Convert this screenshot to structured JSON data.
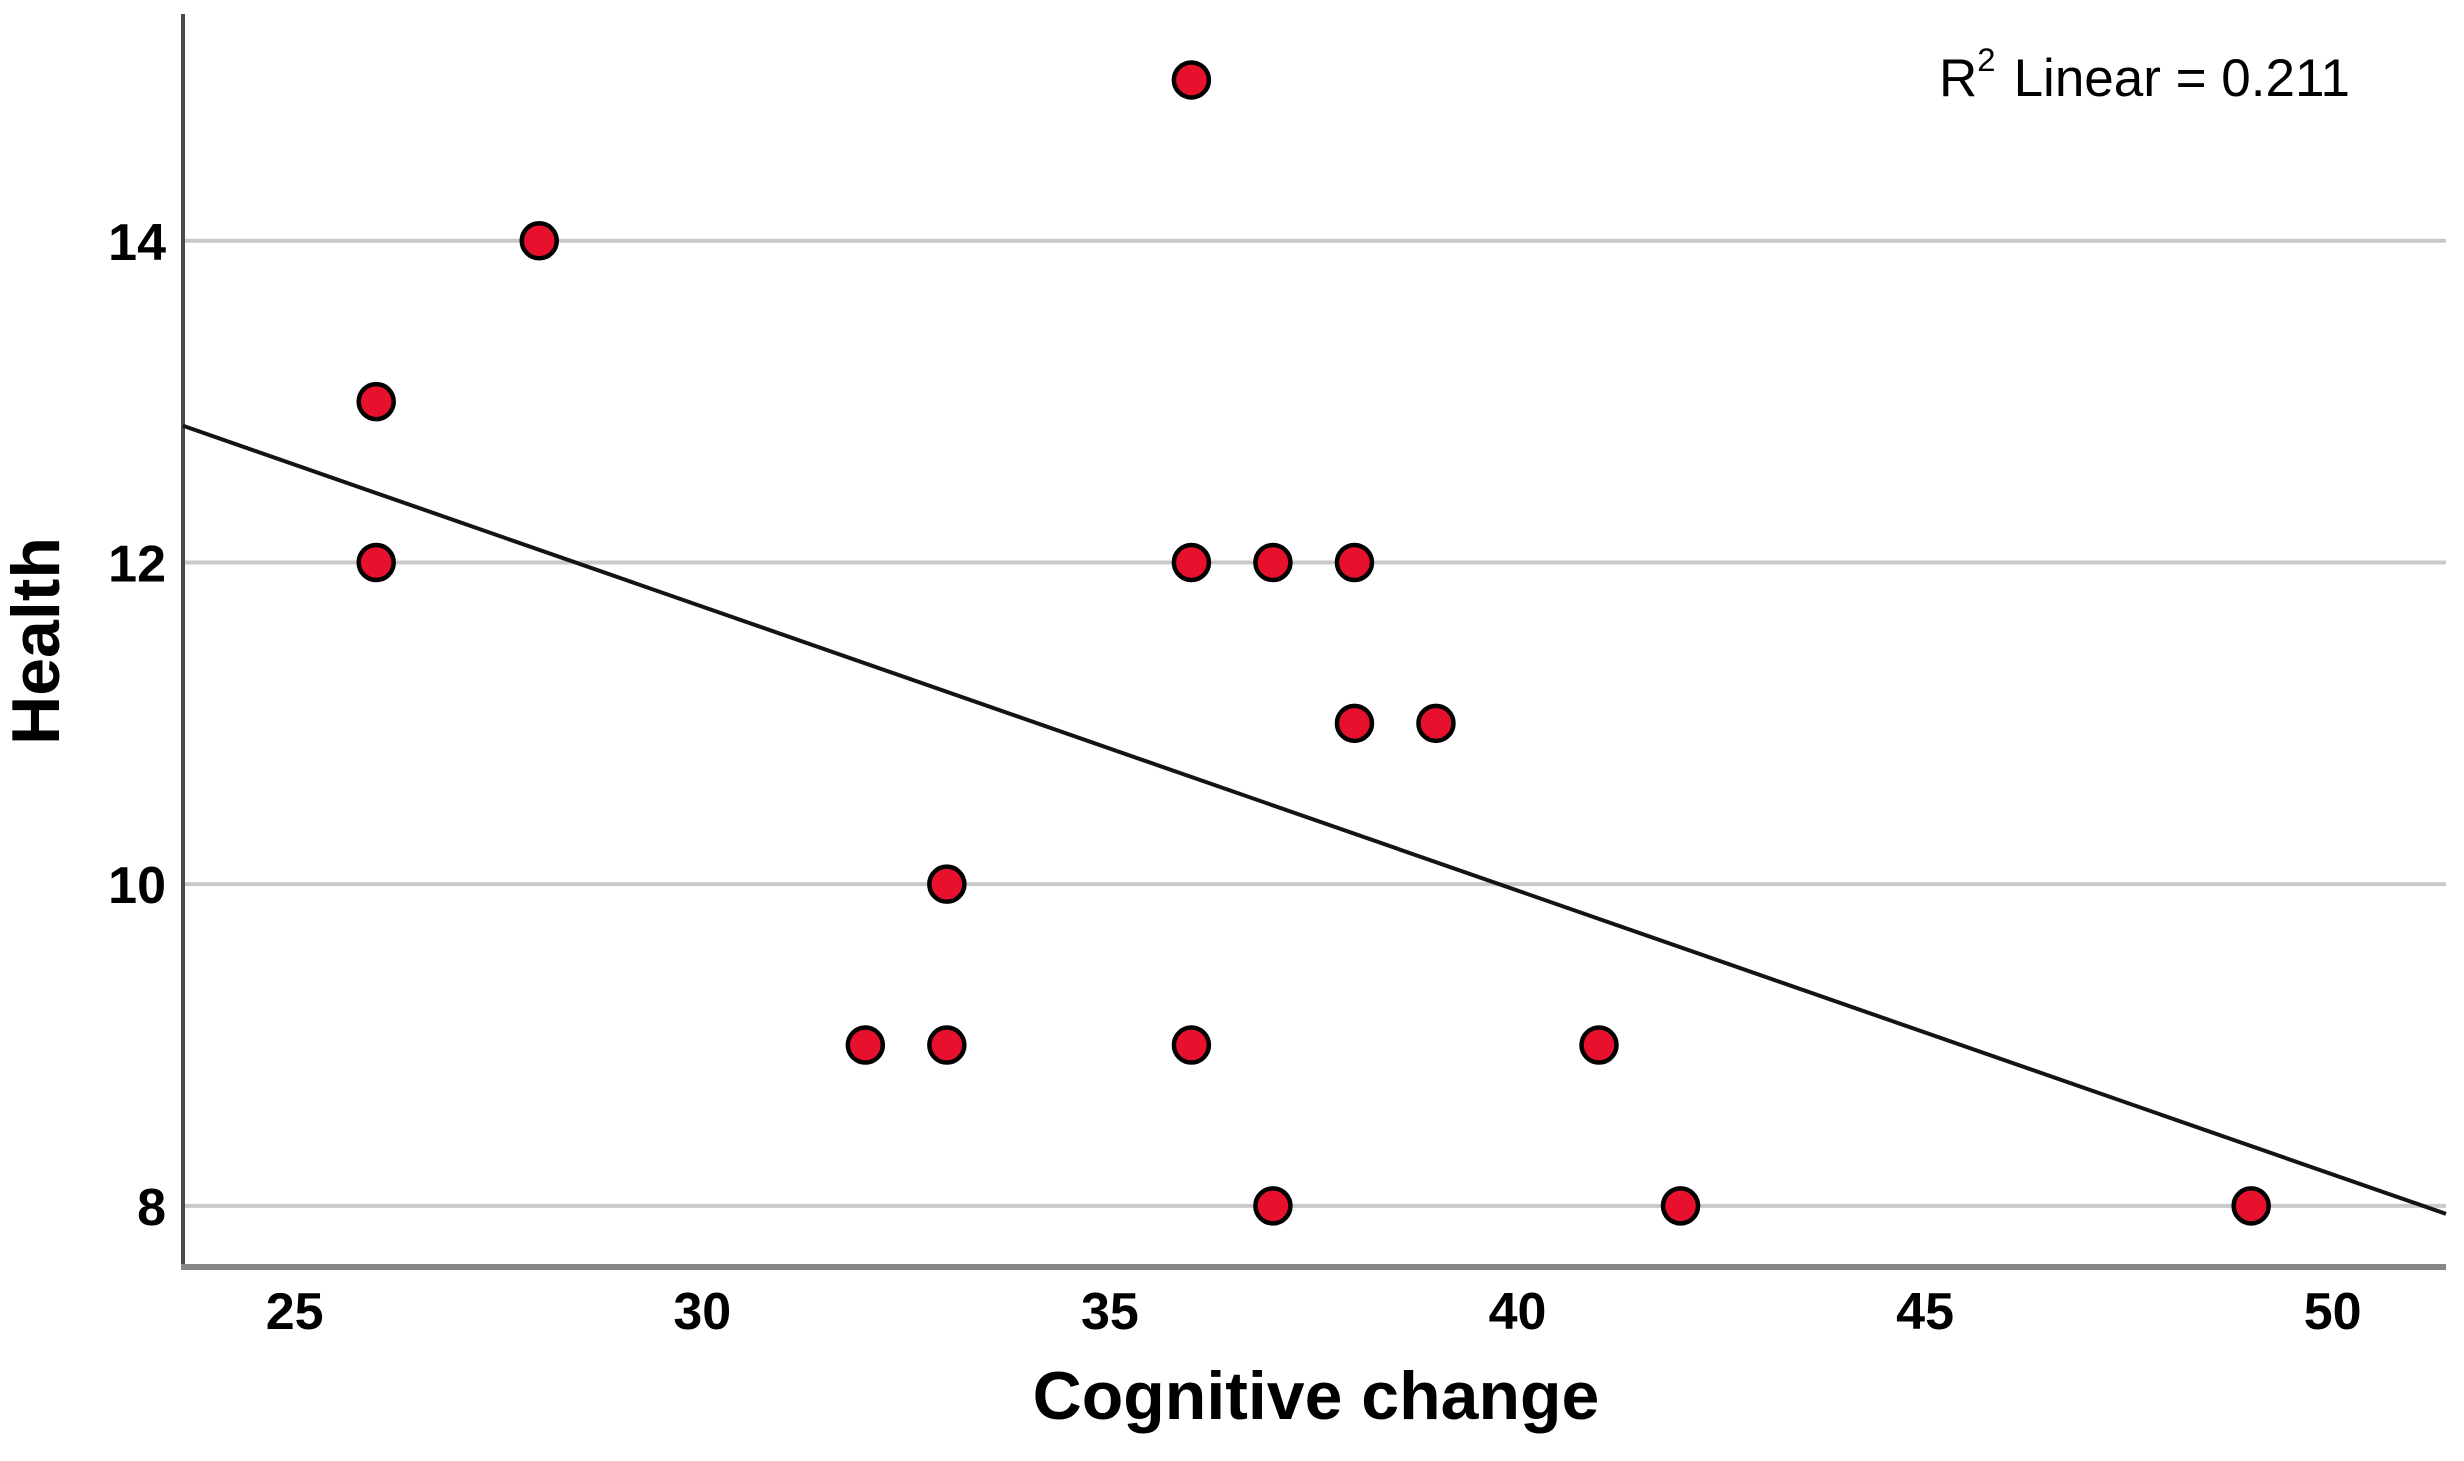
{
  "chart_data": {
    "type": "scatter",
    "title": "",
    "xlabel": "Cognitive change",
    "ylabel": "Health",
    "x_ticks": [
      25,
      30,
      35,
      40,
      45,
      50
    ],
    "y_ticks": [
      8,
      10,
      12,
      14
    ],
    "xlim": [
      23.63,
      51.39
    ],
    "ylim": [
      7.62,
      15.41
    ],
    "grid": "horizontal-only",
    "legend": "none",
    "points": [
      {
        "x": 36,
        "y": 15
      },
      {
        "x": 28,
        "y": 14
      },
      {
        "x": 26,
        "y": 13
      },
      {
        "x": 26,
        "y": 12
      },
      {
        "x": 36,
        "y": 12
      },
      {
        "x": 37,
        "y": 12
      },
      {
        "x": 38,
        "y": 12
      },
      {
        "x": 38,
        "y": 11
      },
      {
        "x": 39,
        "y": 11
      },
      {
        "x": 33,
        "y": 10
      },
      {
        "x": 32,
        "y": 9
      },
      {
        "x": 33,
        "y": 9
      },
      {
        "x": 36,
        "y": 9
      },
      {
        "x": 41,
        "y": 9
      },
      {
        "x": 37,
        "y": 8
      },
      {
        "x": 42,
        "y": 8
      },
      {
        "x": 49,
        "y": 8
      }
    ],
    "fit_line": {
      "x1": 23.63,
      "y1": 12.85,
      "x2": 51.39,
      "y2": 7.95,
      "r_squared": 0.211
    },
    "annotation": {
      "base": "R",
      "sup": "2",
      "rest": "Linear = 0.211"
    },
    "colors": {
      "point_fill": "#e8112d",
      "point_stroke": "#000000",
      "gridline": "#c9c9c9",
      "y_axis_line": "#4a4a4a",
      "x_axis_line": "#878787",
      "fit_line": "#141414",
      "text": "#000000"
    }
  }
}
